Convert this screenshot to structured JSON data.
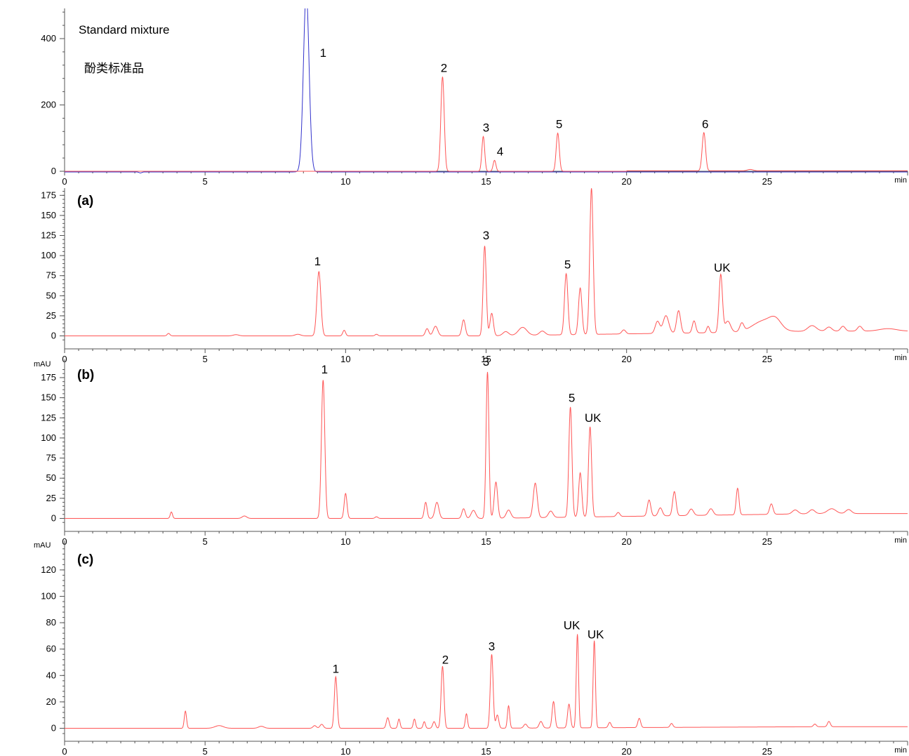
{
  "chart_data": [
    {
      "type": "line",
      "panel": "standard",
      "annotations": [
        "Standard mixture",
        "酚类标准品"
      ],
      "ylim": [
        0,
        500
      ],
      "yticks": [
        0,
        200,
        400
      ],
      "y_unit": "",
      "xlim": [
        0,
        30
      ],
      "xticks": [
        0,
        5,
        10,
        15,
        20,
        25
      ],
      "x_unit": "min",
      "series": [
        {
          "color": "#3333cc",
          "baseline": -2,
          "peaks": [
            {
              "x": 8.6,
              "h": 540,
              "w": 0.1
            },
            {
              "x": 2.7,
              "h": -3,
              "w": 0.05
            }
          ]
        },
        {
          "color": "#ff5555",
          "baseline": 0,
          "peaks": [
            {
              "x": 13.45,
              "h": 285,
              "w": 0.06
            },
            {
              "x": 14.9,
              "h": 105,
              "w": 0.05
            },
            {
              "x": 15.3,
              "h": 33,
              "w": 0.05
            },
            {
              "x": 17.55,
              "h": 115,
              "w": 0.055
            },
            {
              "x": 22.75,
              "h": 115,
              "w": 0.06
            },
            {
              "x": 24.4,
              "h": 4,
              "w": 0.1
            }
          ]
        }
      ],
      "peak_labels": [
        {
          "text": "1",
          "x": 9.2,
          "y": 345
        },
        {
          "text": "2",
          "x": 13.5,
          "y": 300
        },
        {
          "text": "3",
          "x": 15.0,
          "y": 120
        },
        {
          "text": "4",
          "x": 15.5,
          "y": 48
        },
        {
          "text": "5",
          "x": 17.6,
          "y": 130
        },
        {
          "text": "6",
          "x": 22.8,
          "y": 130
        }
      ]
    },
    {
      "type": "line",
      "panel": "a",
      "annotations": [
        "(a)"
      ],
      "ylim": [
        -5,
        182
      ],
      "yticks": [
        0,
        25,
        50,
        75,
        100,
        125,
        150,
        175
      ],
      "y_unit": "",
      "xlim": [
        0,
        30
      ],
      "xticks": [
        0,
        5,
        10,
        15,
        20,
        25
      ],
      "x_unit": "min",
      "series": [
        {
          "color": "#ff5555",
          "baseline": 0,
          "peaks": [
            {
              "x": 3.7,
              "h": 3,
              "w": 0.05
            },
            {
              "x": 6.1,
              "h": 1.5,
              "w": 0.1
            },
            {
              "x": 8.3,
              "h": 2,
              "w": 0.1
            },
            {
              "x": 9.05,
              "h": 80,
              "w": 0.07
            },
            {
              "x": 9.95,
              "h": 7,
              "w": 0.05
            },
            {
              "x": 11.1,
              "h": 2,
              "w": 0.05
            },
            {
              "x": 12.9,
              "h": 9,
              "w": 0.06
            },
            {
              "x": 13.2,
              "h": 12,
              "w": 0.08
            },
            {
              "x": 14.2,
              "h": 20,
              "w": 0.06
            },
            {
              "x": 14.95,
              "h": 112,
              "w": 0.055
            },
            {
              "x": 15.2,
              "h": 28,
              "w": 0.06
            },
            {
              "x": 15.7,
              "h": 5,
              "w": 0.1
            },
            {
              "x": 16.3,
              "h": 10,
              "w": 0.15
            },
            {
              "x": 17.0,
              "h": 5,
              "w": 0.1
            },
            {
              "x": 17.85,
              "h": 76,
              "w": 0.06
            },
            {
              "x": 18.35,
              "h": 58,
              "w": 0.06
            },
            {
              "x": 18.75,
              "h": 182,
              "w": 0.06
            },
            {
              "x": 19.9,
              "h": 5,
              "w": 0.07
            },
            {
              "x": 21.1,
              "h": 15,
              "w": 0.08
            },
            {
              "x": 21.4,
              "h": 22,
              "w": 0.1
            },
            {
              "x": 21.85,
              "h": 28,
              "w": 0.07
            },
            {
              "x": 22.4,
              "h": 15,
              "w": 0.06
            },
            {
              "x": 22.9,
              "h": 8,
              "w": 0.05
            },
            {
              "x": 23.35,
              "h": 72,
              "w": 0.06
            },
            {
              "x": 23.6,
              "h": 14,
              "w": 0.1
            },
            {
              "x": 24.1,
              "h": 10,
              "w": 0.07
            },
            {
              "x": 24.9,
              "h": 14,
              "w": 0.4
            },
            {
              "x": 25.3,
              "h": 10,
              "w": 0.2
            },
            {
              "x": 26.6,
              "h": 7,
              "w": 0.15
            },
            {
              "x": 27.2,
              "h": 5,
              "w": 0.1
            },
            {
              "x": 27.7,
              "h": 6,
              "w": 0.08
            },
            {
              "x": 28.3,
              "h": 6,
              "w": 0.08
            },
            {
              "x": 29.3,
              "h": 3,
              "w": 0.3
            }
          ]
        }
      ],
      "peak_labels": [
        {
          "text": "1",
          "x": 9.0,
          "y": 88
        },
        {
          "text": "3",
          "x": 15.0,
          "y": 120
        },
        {
          "text": "5",
          "x": 17.9,
          "y": 84
        },
        {
          "text": "UK",
          "x": 23.4,
          "y": 80
        }
      ]
    },
    {
      "type": "line",
      "panel": "b",
      "annotations": [
        "(b)"
      ],
      "ylim": [
        -5,
        188
      ],
      "yticks": [
        0,
        25,
        50,
        75,
        100,
        125,
        150,
        175
      ],
      "y_unit": "mAU",
      "xlim": [
        0,
        30
      ],
      "xticks": [
        0,
        5,
        10,
        15,
        20,
        25
      ],
      "x_unit": "min",
      "series": [
        {
          "color": "#ff5555",
          "baseline": 0,
          "peaks": [
            {
              "x": 3.8,
              "h": 8,
              "w": 0.04
            },
            {
              "x": 6.4,
              "h": 3,
              "w": 0.08
            },
            {
              "x": 9.2,
              "h": 172,
              "w": 0.06
            },
            {
              "x": 10.0,
              "h": 31,
              "w": 0.05
            },
            {
              "x": 11.1,
              "h": 2,
              "w": 0.05
            },
            {
              "x": 12.85,
              "h": 20,
              "w": 0.05
            },
            {
              "x": 13.25,
              "h": 20,
              "w": 0.07
            },
            {
              "x": 14.2,
              "h": 12,
              "w": 0.06
            },
            {
              "x": 14.55,
              "h": 10,
              "w": 0.08
            },
            {
              "x": 15.05,
              "h": 182,
              "w": 0.05
            },
            {
              "x": 15.35,
              "h": 45,
              "w": 0.06
            },
            {
              "x": 15.8,
              "h": 10,
              "w": 0.08
            },
            {
              "x": 16.75,
              "h": 43,
              "w": 0.07
            },
            {
              "x": 17.3,
              "h": 8,
              "w": 0.08
            },
            {
              "x": 18.0,
              "h": 137,
              "w": 0.055
            },
            {
              "x": 18.35,
              "h": 55,
              "w": 0.055
            },
            {
              "x": 18.7,
              "h": 112,
              "w": 0.055
            },
            {
              "x": 19.7,
              "h": 5,
              "w": 0.06
            },
            {
              "x": 20.8,
              "h": 20,
              "w": 0.06
            },
            {
              "x": 21.2,
              "h": 10,
              "w": 0.07
            },
            {
              "x": 21.7,
              "h": 30,
              "w": 0.06
            },
            {
              "x": 22.3,
              "h": 8,
              "w": 0.08
            },
            {
              "x": 23.0,
              "h": 8,
              "w": 0.08
            },
            {
              "x": 23.95,
              "h": 33,
              "w": 0.05
            },
            {
              "x": 25.15,
              "h": 13,
              "w": 0.06
            },
            {
              "x": 26.0,
              "h": 5,
              "w": 0.1
            },
            {
              "x": 26.6,
              "h": 5,
              "w": 0.1
            },
            {
              "x": 27.3,
              "h": 6,
              "w": 0.15
            },
            {
              "x": 27.9,
              "h": 5,
              "w": 0.1
            }
          ]
        }
      ],
      "peak_labels": [
        {
          "text": "1",
          "x": 9.25,
          "y": 180
        },
        {
          "text": "3",
          "x": 15.0,
          "y": 190
        },
        {
          "text": "5",
          "x": 18.05,
          "y": 145
        },
        {
          "text": "UK",
          "x": 18.8,
          "y": 120
        }
      ]
    },
    {
      "type": "line",
      "panel": "c",
      "annotations": [
        "(c)"
      ],
      "ylim": [
        -5,
        140
      ],
      "yticks": [
        0,
        20,
        40,
        60,
        80,
        100,
        120
      ],
      "y_unit": "mAU",
      "xlim": [
        0,
        30
      ],
      "xticks": [
        0,
        5,
        10,
        15,
        20,
        25
      ],
      "x_unit": "min",
      "series": [
        {
          "color": "#ff5555",
          "baseline": 0,
          "peaks": [
            {
              "x": 4.3,
              "h": 13,
              "w": 0.04
            },
            {
              "x": 5.5,
              "h": 2,
              "w": 0.15
            },
            {
              "x": 7.0,
              "h": 1.5,
              "w": 0.1
            },
            {
              "x": 8.9,
              "h": 2,
              "w": 0.06
            },
            {
              "x": 9.15,
              "h": 3,
              "w": 0.06
            },
            {
              "x": 9.65,
              "h": 39,
              "w": 0.05
            },
            {
              "x": 11.5,
              "h": 8,
              "w": 0.05
            },
            {
              "x": 11.9,
              "h": 7,
              "w": 0.04
            },
            {
              "x": 12.45,
              "h": 7,
              "w": 0.04
            },
            {
              "x": 12.8,
              "h": 5,
              "w": 0.04
            },
            {
              "x": 13.15,
              "h": 5,
              "w": 0.05
            },
            {
              "x": 13.45,
              "h": 47,
              "w": 0.05
            },
            {
              "x": 14.3,
              "h": 11,
              "w": 0.04
            },
            {
              "x": 15.2,
              "h": 56,
              "w": 0.05
            },
            {
              "x": 15.4,
              "h": 10,
              "w": 0.05
            },
            {
              "x": 15.8,
              "h": 17,
              "w": 0.04
            },
            {
              "x": 16.4,
              "h": 3,
              "w": 0.06
            },
            {
              "x": 16.95,
              "h": 5,
              "w": 0.06
            },
            {
              "x": 17.4,
              "h": 20,
              "w": 0.05
            },
            {
              "x": 17.95,
              "h": 18,
              "w": 0.05
            },
            {
              "x": 18.25,
              "h": 71,
              "w": 0.04
            },
            {
              "x": 18.85,
              "h": 66,
              "w": 0.04
            },
            {
              "x": 19.4,
              "h": 4,
              "w": 0.05
            },
            {
              "x": 20.45,
              "h": 7,
              "w": 0.05
            },
            {
              "x": 21.6,
              "h": 3,
              "w": 0.05
            },
            {
              "x": 26.7,
              "h": 2,
              "w": 0.05
            },
            {
              "x": 27.2,
              "h": 4,
              "w": 0.05
            }
          ]
        }
      ],
      "peak_labels": [
        {
          "text": "1",
          "x": 9.65,
          "y": 42
        },
        {
          "text": "2",
          "x": 13.55,
          "y": 49
        },
        {
          "text": "3",
          "x": 15.2,
          "y": 59
        },
        {
          "text": "UK",
          "x": 18.05,
          "y": 75
        },
        {
          "text": "UK",
          "x": 18.9,
          "y": 68
        }
      ]
    }
  ]
}
